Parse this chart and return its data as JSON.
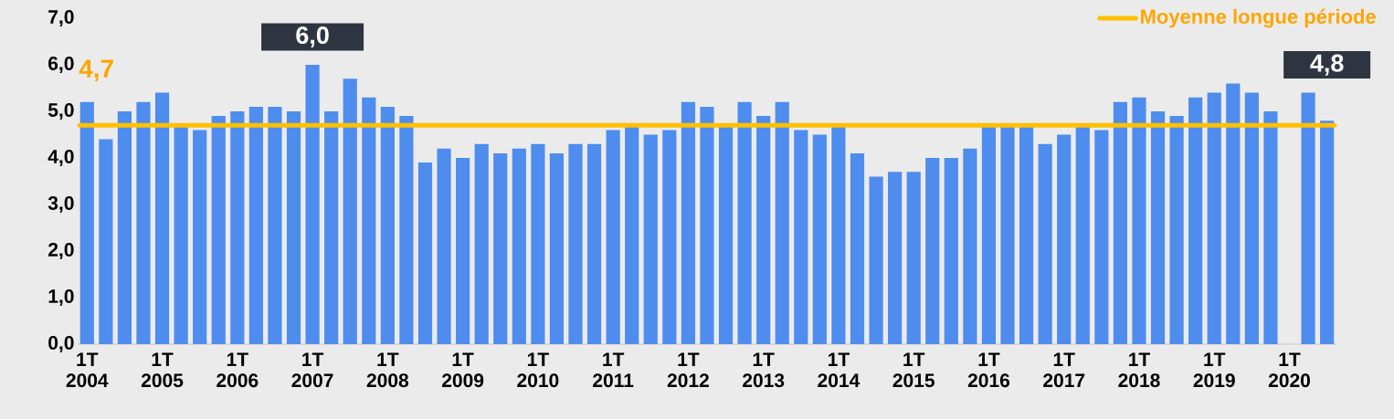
{
  "chart_data": {
    "type": "bar",
    "categories": [
      "1T 2004",
      null,
      null,
      null,
      "1T 2005",
      null,
      null,
      null,
      "1T 2006",
      null,
      null,
      null,
      "1T 2007",
      null,
      null,
      null,
      "1T 2008",
      null,
      null,
      null,
      "1T 2009",
      null,
      null,
      null,
      "1T 2010",
      null,
      null,
      null,
      "1T 2011",
      null,
      null,
      null,
      "1T 2012",
      null,
      null,
      null,
      "1T 2013",
      null,
      null,
      null,
      "1T 2014",
      null,
      null,
      null,
      "1T 2015",
      null,
      null,
      null,
      "1T 2016",
      null,
      null,
      null,
      "1T 2017",
      null,
      null,
      null,
      "1T 2018",
      null,
      null,
      null,
      "1T 2019",
      null,
      null,
      null,
      "1T 2020",
      null,
      null
    ],
    "values": [
      5.2,
      4.4,
      5.0,
      5.2,
      5.4,
      4.7,
      4.6,
      4.9,
      5.0,
      5.1,
      5.1,
      5.0,
      6.0,
      5.0,
      5.7,
      5.3,
      5.1,
      4.9,
      3.9,
      4.2,
      4.0,
      4.3,
      4.1,
      4.2,
      4.3,
      4.1,
      4.3,
      4.3,
      4.6,
      4.7,
      4.5,
      4.6,
      5.2,
      5.1,
      4.7,
      5.2,
      4.9,
      5.2,
      4.6,
      4.5,
      4.7,
      4.1,
      3.6,
      3.7,
      3.7,
      4.0,
      4.0,
      4.2,
      4.7,
      4.7,
      4.7,
      4.3,
      4.5,
      4.7,
      4.6,
      5.2,
      5.3,
      5.0,
      4.9,
      5.3,
      5.4,
      5.6,
      5.4,
      5.0,
      null,
      5.4,
      4.8
    ],
    "value_labels": [
      null,
      null,
      null,
      null,
      null,
      null,
      null,
      null,
      null,
      null,
      null,
      null,
      "6,0",
      null,
      null,
      null,
      null,
      null,
      null,
      null,
      null,
      null,
      null,
      null,
      null,
      null,
      null,
      null,
      null,
      null,
      null,
      null,
      null,
      null,
      null,
      null,
      null,
      null,
      null,
      null,
      null,
      null,
      null,
      null,
      null,
      null,
      null,
      null,
      null,
      null,
      null,
      null,
      null,
      null,
      null,
      null,
      null,
      null,
      null,
      null,
      null,
      null,
      null,
      null,
      null,
      null,
      "4,8"
    ],
    "color": "#4e8ded",
    "ylim": [
      0,
      7
    ],
    "yticks": [
      {
        "value": 0,
        "label": "0,0"
      },
      {
        "value": 1,
        "label": "1,0"
      },
      {
        "value": 2,
        "label": "2,0"
      },
      {
        "value": 3,
        "label": "3,0"
      },
      {
        "value": 4,
        "label": "4,0"
      },
      {
        "value": 5,
        "label": "5,0"
      },
      {
        "value": 6,
        "label": "6,0"
      },
      {
        "value": 7,
        "label": "7,0"
      }
    ],
    "ref_lines": [
      {
        "axis": "y",
        "value": 4.7,
        "label": "Moyenne longue période",
        "color": "#ffc000"
      }
    ],
    "annotations": [
      {
        "text": "4,7",
        "x": "1T 2004",
        "y": 4.7
      }
    ],
    "legend": "top right",
    "grid": false
  }
}
